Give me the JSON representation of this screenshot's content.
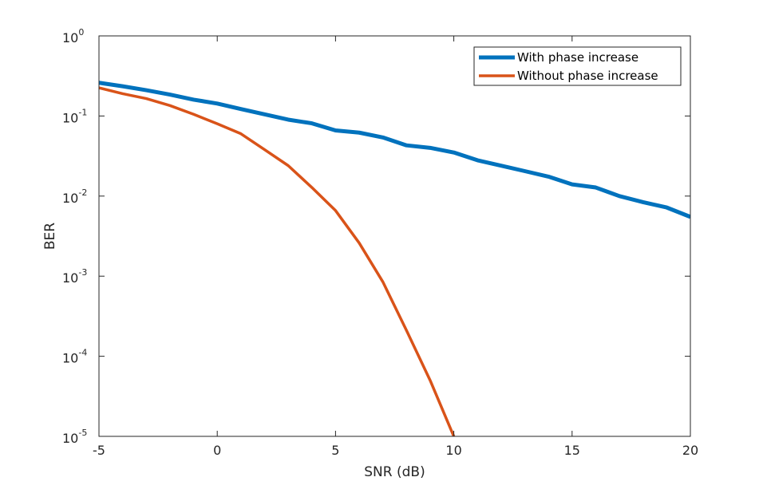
{
  "chart_data": {
    "type": "line",
    "title": "",
    "xlabel": "SNR (dB)",
    "ylabel": "BER",
    "xlim": [
      -5,
      20
    ],
    "ylim": [
      1e-05,
      1
    ],
    "yscale": "log",
    "xticks": [
      -5,
      0,
      5,
      10,
      15,
      20
    ],
    "xtick_labels": [
      "-5",
      "0",
      "5",
      "10",
      "15",
      "20"
    ],
    "yticks": [
      {
        "value": 1e-05,
        "base": "10",
        "exp": "-5"
      },
      {
        "value": 0.0001,
        "base": "10",
        "exp": "-4"
      },
      {
        "value": 0.001,
        "base": "10",
        "exp": "-3"
      },
      {
        "value": 0.01,
        "base": "10",
        "exp": "-2"
      },
      {
        "value": 0.1,
        "base": "10",
        "exp": "-1"
      },
      {
        "value": 1,
        "base": "10",
        "exp": "0"
      }
    ],
    "grid": false,
    "legend_position": "top-right",
    "series": [
      {
        "name": "With phase increase",
        "color": "#0072BD",
        "x": [
          -5,
          -4,
          -3,
          -2,
          -1,
          0,
          1,
          2,
          3,
          4,
          5,
          6,
          7,
          8,
          9,
          10,
          11,
          12,
          13,
          14,
          15,
          16,
          17,
          18,
          19,
          20
        ],
        "y": [
          0.26,
          0.235,
          0.21,
          0.185,
          0.16,
          0.143,
          0.122,
          0.105,
          0.09,
          0.081,
          0.066,
          0.062,
          0.054,
          0.043,
          0.04,
          0.035,
          0.028,
          0.024,
          0.0205,
          0.0175,
          0.014,
          0.0128,
          0.01,
          0.0084,
          0.0072,
          0.0055
        ]
      },
      {
        "name": "Without phase increase",
        "color": "#D95319",
        "x": [
          -5,
          -4,
          -3,
          -2,
          -1,
          0,
          1,
          2,
          3,
          4,
          5,
          6,
          7,
          8,
          9,
          10
        ],
        "y": [
          0.225,
          0.19,
          0.165,
          0.135,
          0.105,
          0.08,
          0.06,
          0.038,
          0.024,
          0.0128,
          0.0066,
          0.0026,
          0.00085,
          0.00021,
          5e-05,
          1e-05
        ]
      }
    ]
  }
}
